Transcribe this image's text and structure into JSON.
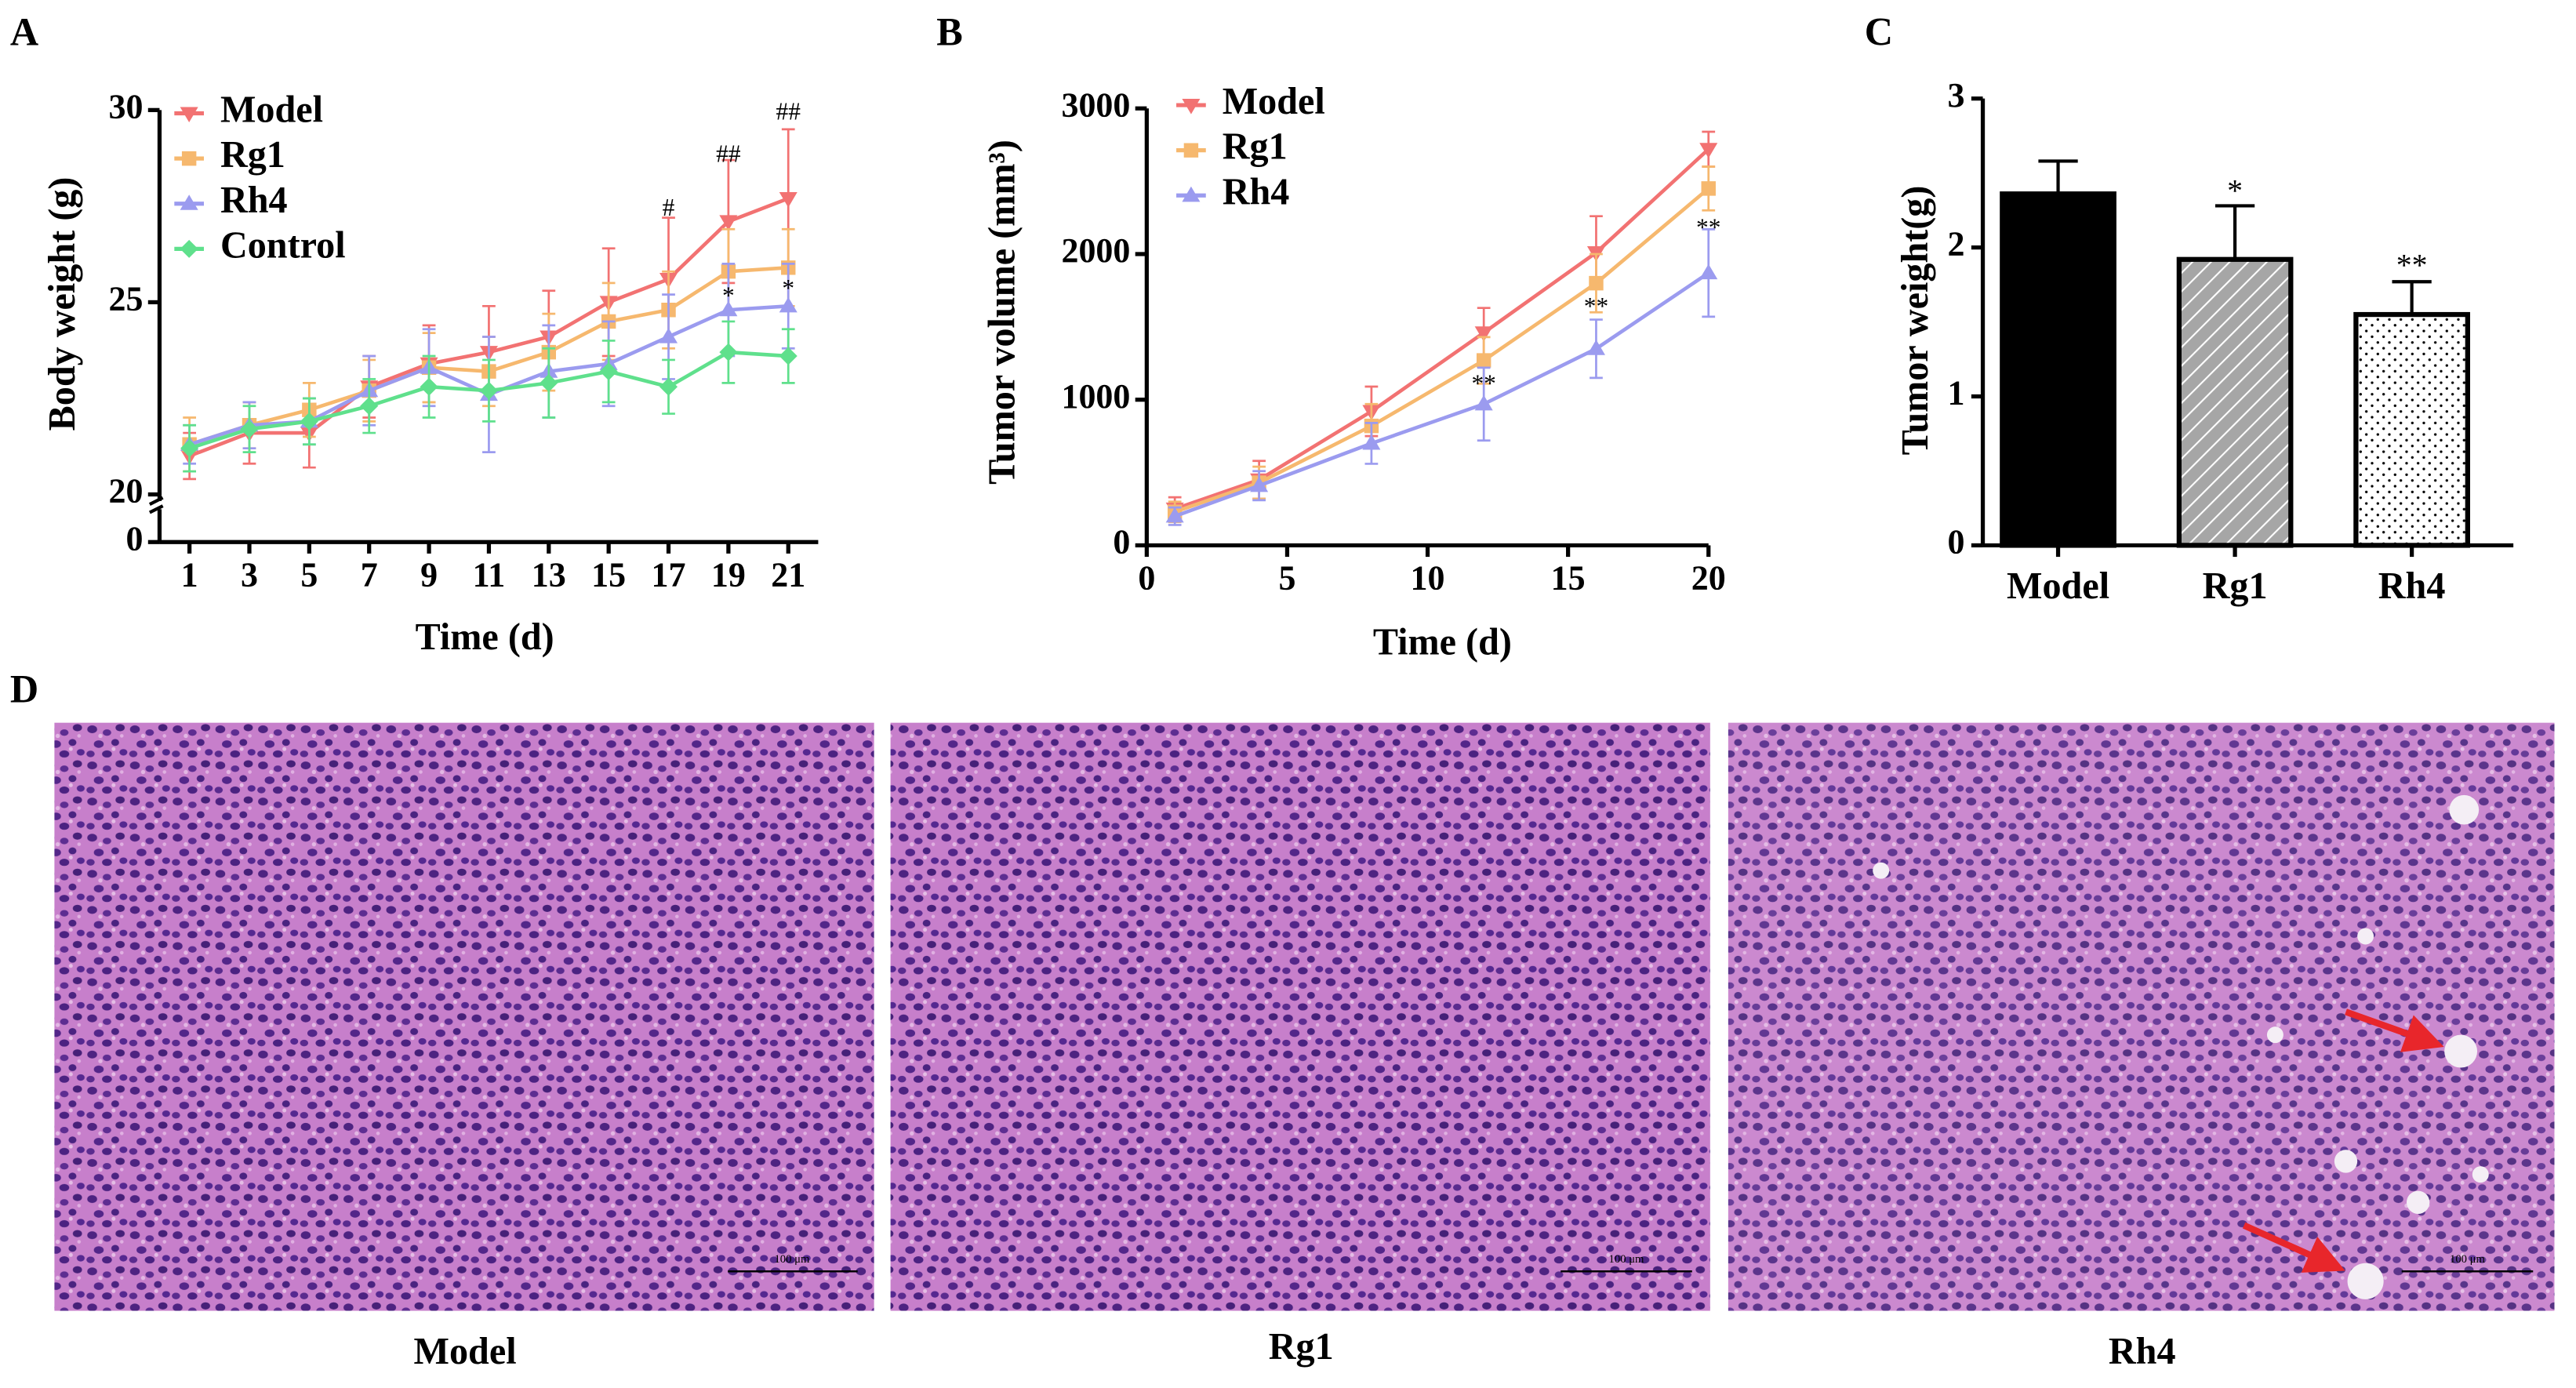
{
  "chart_data": [
    {
      "type": "line",
      "panel": "A",
      "x_label": "Time (d)",
      "y_label": "Body weight (g)",
      "x": [
        1,
        3,
        5,
        7,
        9,
        11,
        13,
        15,
        17,
        19,
        21
      ],
      "xlim": [
        0,
        22
      ],
      "xticks": [
        1,
        3,
        5,
        7,
        9,
        11,
        13,
        15,
        17,
        19,
        21
      ],
      "ylim": [
        0,
        30
      ],
      "yticks": [
        0,
        20,
        25,
        30
      ],
      "y_axis_break": true,
      "series": [
        {
          "name": "Model",
          "color": "#f27272",
          "marker": "triangle-down",
          "values": [
            21.0,
            21.6,
            21.6,
            22.8,
            23.4,
            23.7,
            24.1,
            25.0,
            25.6,
            27.1,
            27.7
          ],
          "errors": [
            0.6,
            0.8,
            0.9,
            0.8,
            1.0,
            1.2,
            1.2,
            1.4,
            1.6,
            1.6,
            1.8
          ]
        },
        {
          "name": "Rg1",
          "color": "#f6b86e",
          "marker": "square",
          "values": [
            21.3,
            21.8,
            22.2,
            22.7,
            23.3,
            23.2,
            23.7,
            24.5,
            24.8,
            25.8,
            25.9
          ],
          "errors": [
            0.7,
            0.6,
            0.7,
            0.8,
            0.9,
            0.9,
            1.0,
            1.0,
            1.0,
            1.1,
            1.0
          ]
        },
        {
          "name": "Rh4",
          "color": "#9b9bef",
          "marker": "triangle-up",
          "values": [
            21.3,
            21.8,
            21.9,
            22.7,
            23.3,
            22.6,
            23.2,
            23.4,
            24.1,
            24.8,
            24.9
          ],
          "errors": [
            0.5,
            0.6,
            0.6,
            0.9,
            1.0,
            1.5,
            1.2,
            1.1,
            1.1,
            1.2,
            1.1
          ]
        },
        {
          "name": "Control",
          "color": "#5fe08c",
          "marker": "diamond",
          "values": [
            21.2,
            21.7,
            21.9,
            22.3,
            22.8,
            22.7,
            22.9,
            23.2,
            22.8,
            23.7,
            23.6
          ],
          "errors": [
            0.6,
            0.6,
            0.6,
            0.7,
            0.8,
            0.8,
            0.9,
            0.8,
            0.7,
            0.8,
            0.7
          ]
        }
      ],
      "annotations": [
        {
          "text": "#",
          "x": 17,
          "y": 27.4
        },
        {
          "text": "##",
          "x": 19,
          "y": 28.8
        },
        {
          "text": "##",
          "x": 21,
          "y": 29.9
        },
        {
          "text": "*",
          "x": 19,
          "y": 25.1
        },
        {
          "text": "*",
          "x": 21,
          "y": 25.3
        }
      ]
    },
    {
      "type": "line",
      "panel": "B",
      "x_label": "Time (d)",
      "y_label": "Tumor volume (mm³)",
      "x": [
        1,
        4,
        8,
        12,
        16,
        20
      ],
      "xlim": [
        0,
        20
      ],
      "xticks": [
        0,
        5,
        10,
        15,
        20
      ],
      "ylim": [
        0,
        3000
      ],
      "yticks": [
        0,
        1000,
        2000,
        3000
      ],
      "series": [
        {
          "name": "Model",
          "color": "#f27272",
          "marker": "triangle-down",
          "values": [
            250,
            450,
            920,
            1460,
            2010,
            2720
          ],
          "errors": [
            80,
            130,
            170,
            170,
            250,
            120
          ]
        },
        {
          "name": "Rg1",
          "color": "#f6b86e",
          "marker": "square",
          "values": [
            230,
            430,
            820,
            1270,
            1800,
            2450
          ],
          "errors": [
            70,
            110,
            150,
            160,
            200,
            150
          ]
        },
        {
          "name": "Rh4",
          "color": "#9b9bef",
          "marker": "triangle-up",
          "values": [
            200,
            410,
            700,
            970,
            1350,
            1870
          ],
          "errors": [
            60,
            100,
            140,
            250,
            200,
            300
          ]
        }
      ],
      "annotations": [
        {
          "text": "**",
          "x": 12,
          "y": 1094
        },
        {
          "text": "**",
          "x": 16,
          "y": 1624
        },
        {
          "text": "**",
          "x": 20,
          "y": 2165
        }
      ]
    },
    {
      "type": "bar",
      "panel": "C",
      "y_label": "Tumor weight(g)",
      "categories": [
        "Model",
        "Rg1",
        "Rh4"
      ],
      "values": [
        2.36,
        1.92,
        1.55
      ],
      "errors": [
        0.22,
        0.36,
        0.22
      ],
      "colors": [
        "#000000",
        "#a6a6a6",
        "#ffffff"
      ],
      "patterns": [
        "solid",
        "hatch",
        "dots"
      ],
      "ylim": [
        0,
        3
      ],
      "yticks": [
        0,
        1,
        2,
        3
      ],
      "annotations": [
        {
          "text": "*",
          "category": 1,
          "y": 2.36
        },
        {
          "text": "**",
          "category": 2,
          "y": 1.86
        }
      ]
    }
  ],
  "figure_d": {
    "panel": "D",
    "labels": [
      "Model",
      "Rg1",
      "Rh4"
    ],
    "scale_bar": "100 μm"
  }
}
